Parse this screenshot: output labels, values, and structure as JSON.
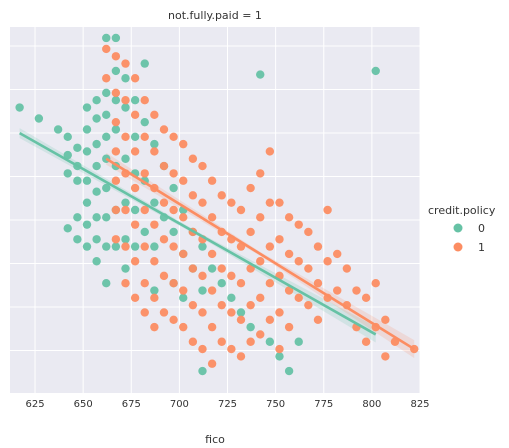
{
  "chart_data": {
    "type": "scatter",
    "title": "not.fully.paid = 1",
    "xlabel": "fico",
    "ylabel": "",
    "xlim": [
      612,
      825
    ],
    "ylim": [
      0,
      100
    ],
    "xticks": [
      "625",
      "650",
      "675",
      "700",
      "725",
      "750",
      "775",
      "800",
      "825"
    ],
    "grid": true,
    "legend": {
      "title": "credit.policy",
      "placement": "right"
    },
    "series": [
      {
        "name": "0",
        "color": "#66c2a5",
        "points": [
          [
            617,
            78
          ],
          [
            627,
            75
          ],
          [
            637,
            72
          ],
          [
            642,
            70
          ],
          [
            642,
            65
          ],
          [
            647,
            67
          ],
          [
            647,
            62
          ],
          [
            647,
            58
          ],
          [
            642,
            60
          ],
          [
            642,
            45
          ],
          [
            647,
            42
          ],
          [
            647,
            48
          ],
          [
            652,
            78
          ],
          [
            652,
            72
          ],
          [
            652,
            66
          ],
          [
            652,
            58
          ],
          [
            652,
            52
          ],
          [
            652,
            46
          ],
          [
            652,
            40
          ],
          [
            657,
            80
          ],
          [
            657,
            75
          ],
          [
            657,
            68
          ],
          [
            657,
            62
          ],
          [
            657,
            55
          ],
          [
            657,
            48
          ],
          [
            657,
            42
          ],
          [
            657,
            36
          ],
          [
            662,
            82
          ],
          [
            662,
            76
          ],
          [
            662,
            70
          ],
          [
            662,
            64
          ],
          [
            662,
            56
          ],
          [
            662,
            48
          ],
          [
            662,
            40
          ],
          [
            662,
            30
          ],
          [
            662,
            97
          ],
          [
            667,
            97
          ],
          [
            667,
            88
          ],
          [
            667,
            80
          ],
          [
            667,
            72
          ],
          [
            667,
            62
          ],
          [
            667,
            50
          ],
          [
            667,
            40
          ],
          [
            672,
            86
          ],
          [
            672,
            78
          ],
          [
            672,
            64
          ],
          [
            672,
            52
          ],
          [
            672,
            42
          ],
          [
            672,
            34
          ],
          [
            677,
            80
          ],
          [
            677,
            70
          ],
          [
            677,
            60
          ],
          [
            677,
            50
          ],
          [
            677,
            40
          ],
          [
            682,
            90
          ],
          [
            682,
            74
          ],
          [
            682,
            58
          ],
          [
            682,
            44
          ],
          [
            687,
            68
          ],
          [
            687,
            52
          ],
          [
            687,
            40
          ],
          [
            687,
            28
          ],
          [
            692,
            62
          ],
          [
            692,
            48
          ],
          [
            697,
            56
          ],
          [
            697,
            44
          ],
          [
            697,
            30
          ],
          [
            702,
            50
          ],
          [
            702,
            38
          ],
          [
            702,
            26
          ],
          [
            707,
            44
          ],
          [
            707,
            34
          ],
          [
            712,
            40
          ],
          [
            712,
            28
          ],
          [
            712,
            6
          ],
          [
            717,
            34
          ],
          [
            722,
            30
          ],
          [
            727,
            26
          ],
          [
            732,
            22
          ],
          [
            737,
            18
          ],
          [
            742,
            87
          ],
          [
            747,
            14
          ],
          [
            752,
            10
          ],
          [
            757,
            6
          ],
          [
            762,
            14
          ],
          [
            802,
            88
          ]
        ]
      },
      {
        "name": "1",
        "color": "#fc8d62",
        "points": [
          [
            662,
            94
          ],
          [
            662,
            86
          ],
          [
            667,
            92
          ],
          [
            667,
            82
          ],
          [
            667,
            74
          ],
          [
            667,
            66
          ],
          [
            667,
            58
          ],
          [
            667,
            50
          ],
          [
            667,
            42
          ],
          [
            672,
            90
          ],
          [
            672,
            80
          ],
          [
            672,
            70
          ],
          [
            672,
            60
          ],
          [
            672,
            50
          ],
          [
            672,
            40
          ],
          [
            672,
            30
          ],
          [
            677,
            86
          ],
          [
            677,
            76
          ],
          [
            677,
            66
          ],
          [
            677,
            56
          ],
          [
            677,
            46
          ],
          [
            677,
            36
          ],
          [
            677,
            26
          ],
          [
            682,
            80
          ],
          [
            682,
            70
          ],
          [
            682,
            60
          ],
          [
            682,
            50
          ],
          [
            682,
            40
          ],
          [
            682,
            30
          ],
          [
            682,
            22
          ],
          [
            687,
            76
          ],
          [
            687,
            66
          ],
          [
            687,
            56
          ],
          [
            687,
            46
          ],
          [
            687,
            36
          ],
          [
            687,
            26
          ],
          [
            687,
            18
          ],
          [
            692,
            72
          ],
          [
            692,
            62
          ],
          [
            692,
            52
          ],
          [
            692,
            42
          ],
          [
            692,
            32
          ],
          [
            692,
            22
          ],
          [
            697,
            70
          ],
          [
            697,
            60
          ],
          [
            697,
            50
          ],
          [
            697,
            40
          ],
          [
            697,
            30
          ],
          [
            697,
            20
          ],
          [
            702,
            68
          ],
          [
            702,
            58
          ],
          [
            702,
            48
          ],
          [
            702,
            38
          ],
          [
            702,
            28
          ],
          [
            702,
            18
          ],
          [
            707,
            64
          ],
          [
            707,
            54
          ],
          [
            707,
            44
          ],
          [
            707,
            34
          ],
          [
            707,
            24
          ],
          [
            707,
            14
          ],
          [
            712,
            62
          ],
          [
            712,
            52
          ],
          [
            712,
            42
          ],
          [
            712,
            32
          ],
          [
            712,
            22
          ],
          [
            712,
            12
          ],
          [
            717,
            58
          ],
          [
            717,
            48
          ],
          [
            717,
            38
          ],
          [
            717,
            28
          ],
          [
            717,
            18
          ],
          [
            717,
            8
          ],
          [
            722,
            54
          ],
          [
            722,
            44
          ],
          [
            722,
            34
          ],
          [
            722,
            24
          ],
          [
            722,
            14
          ],
          [
            727,
            52
          ],
          [
            727,
            42
          ],
          [
            727,
            32
          ],
          [
            727,
            22
          ],
          [
            727,
            12
          ],
          [
            732,
            50
          ],
          [
            732,
            40
          ],
          [
            732,
            30
          ],
          [
            732,
            20
          ],
          [
            732,
            10
          ],
          [
            737,
            56
          ],
          [
            737,
            44
          ],
          [
            737,
            34
          ],
          [
            737,
            24
          ],
          [
            737,
            14
          ],
          [
            742,
            60
          ],
          [
            742,
            48
          ],
          [
            742,
            36
          ],
          [
            742,
            26
          ],
          [
            742,
            16
          ],
          [
            747,
            66
          ],
          [
            747,
            52
          ],
          [
            747,
            40
          ],
          [
            747,
            30
          ],
          [
            747,
            20
          ],
          [
            752,
            52
          ],
          [
            752,
            42
          ],
          [
            752,
            32
          ],
          [
            752,
            22
          ],
          [
            752,
            12
          ],
          [
            757,
            48
          ],
          [
            757,
            38
          ],
          [
            757,
            28
          ],
          [
            757,
            18
          ],
          [
            762,
            46
          ],
          [
            762,
            36
          ],
          [
            762,
            26
          ],
          [
            767,
            44
          ],
          [
            767,
            34
          ],
          [
            767,
            24
          ],
          [
            772,
            40
          ],
          [
            772,
            30
          ],
          [
            772,
            20
          ],
          [
            777,
            50
          ],
          [
            777,
            36
          ],
          [
            777,
            26
          ],
          [
            782,
            38
          ],
          [
            782,
            28
          ],
          [
            787,
            34
          ],
          [
            787,
            24
          ],
          [
            792,
            28
          ],
          [
            792,
            18
          ],
          [
            797,
            26
          ],
          [
            797,
            14
          ],
          [
            802,
            30
          ],
          [
            802,
            18
          ],
          [
            807,
            20
          ],
          [
            807,
            10
          ],
          [
            812,
            14
          ],
          [
            822,
            12
          ]
        ]
      }
    ],
    "fits": [
      {
        "series": "0",
        "x0": 617,
        "y0": 71,
        "x1": 802,
        "y1": 16
      },
      {
        "series": "1",
        "x0": 662,
        "y0": 64,
        "x1": 822,
        "y1": 12
      }
    ]
  }
}
